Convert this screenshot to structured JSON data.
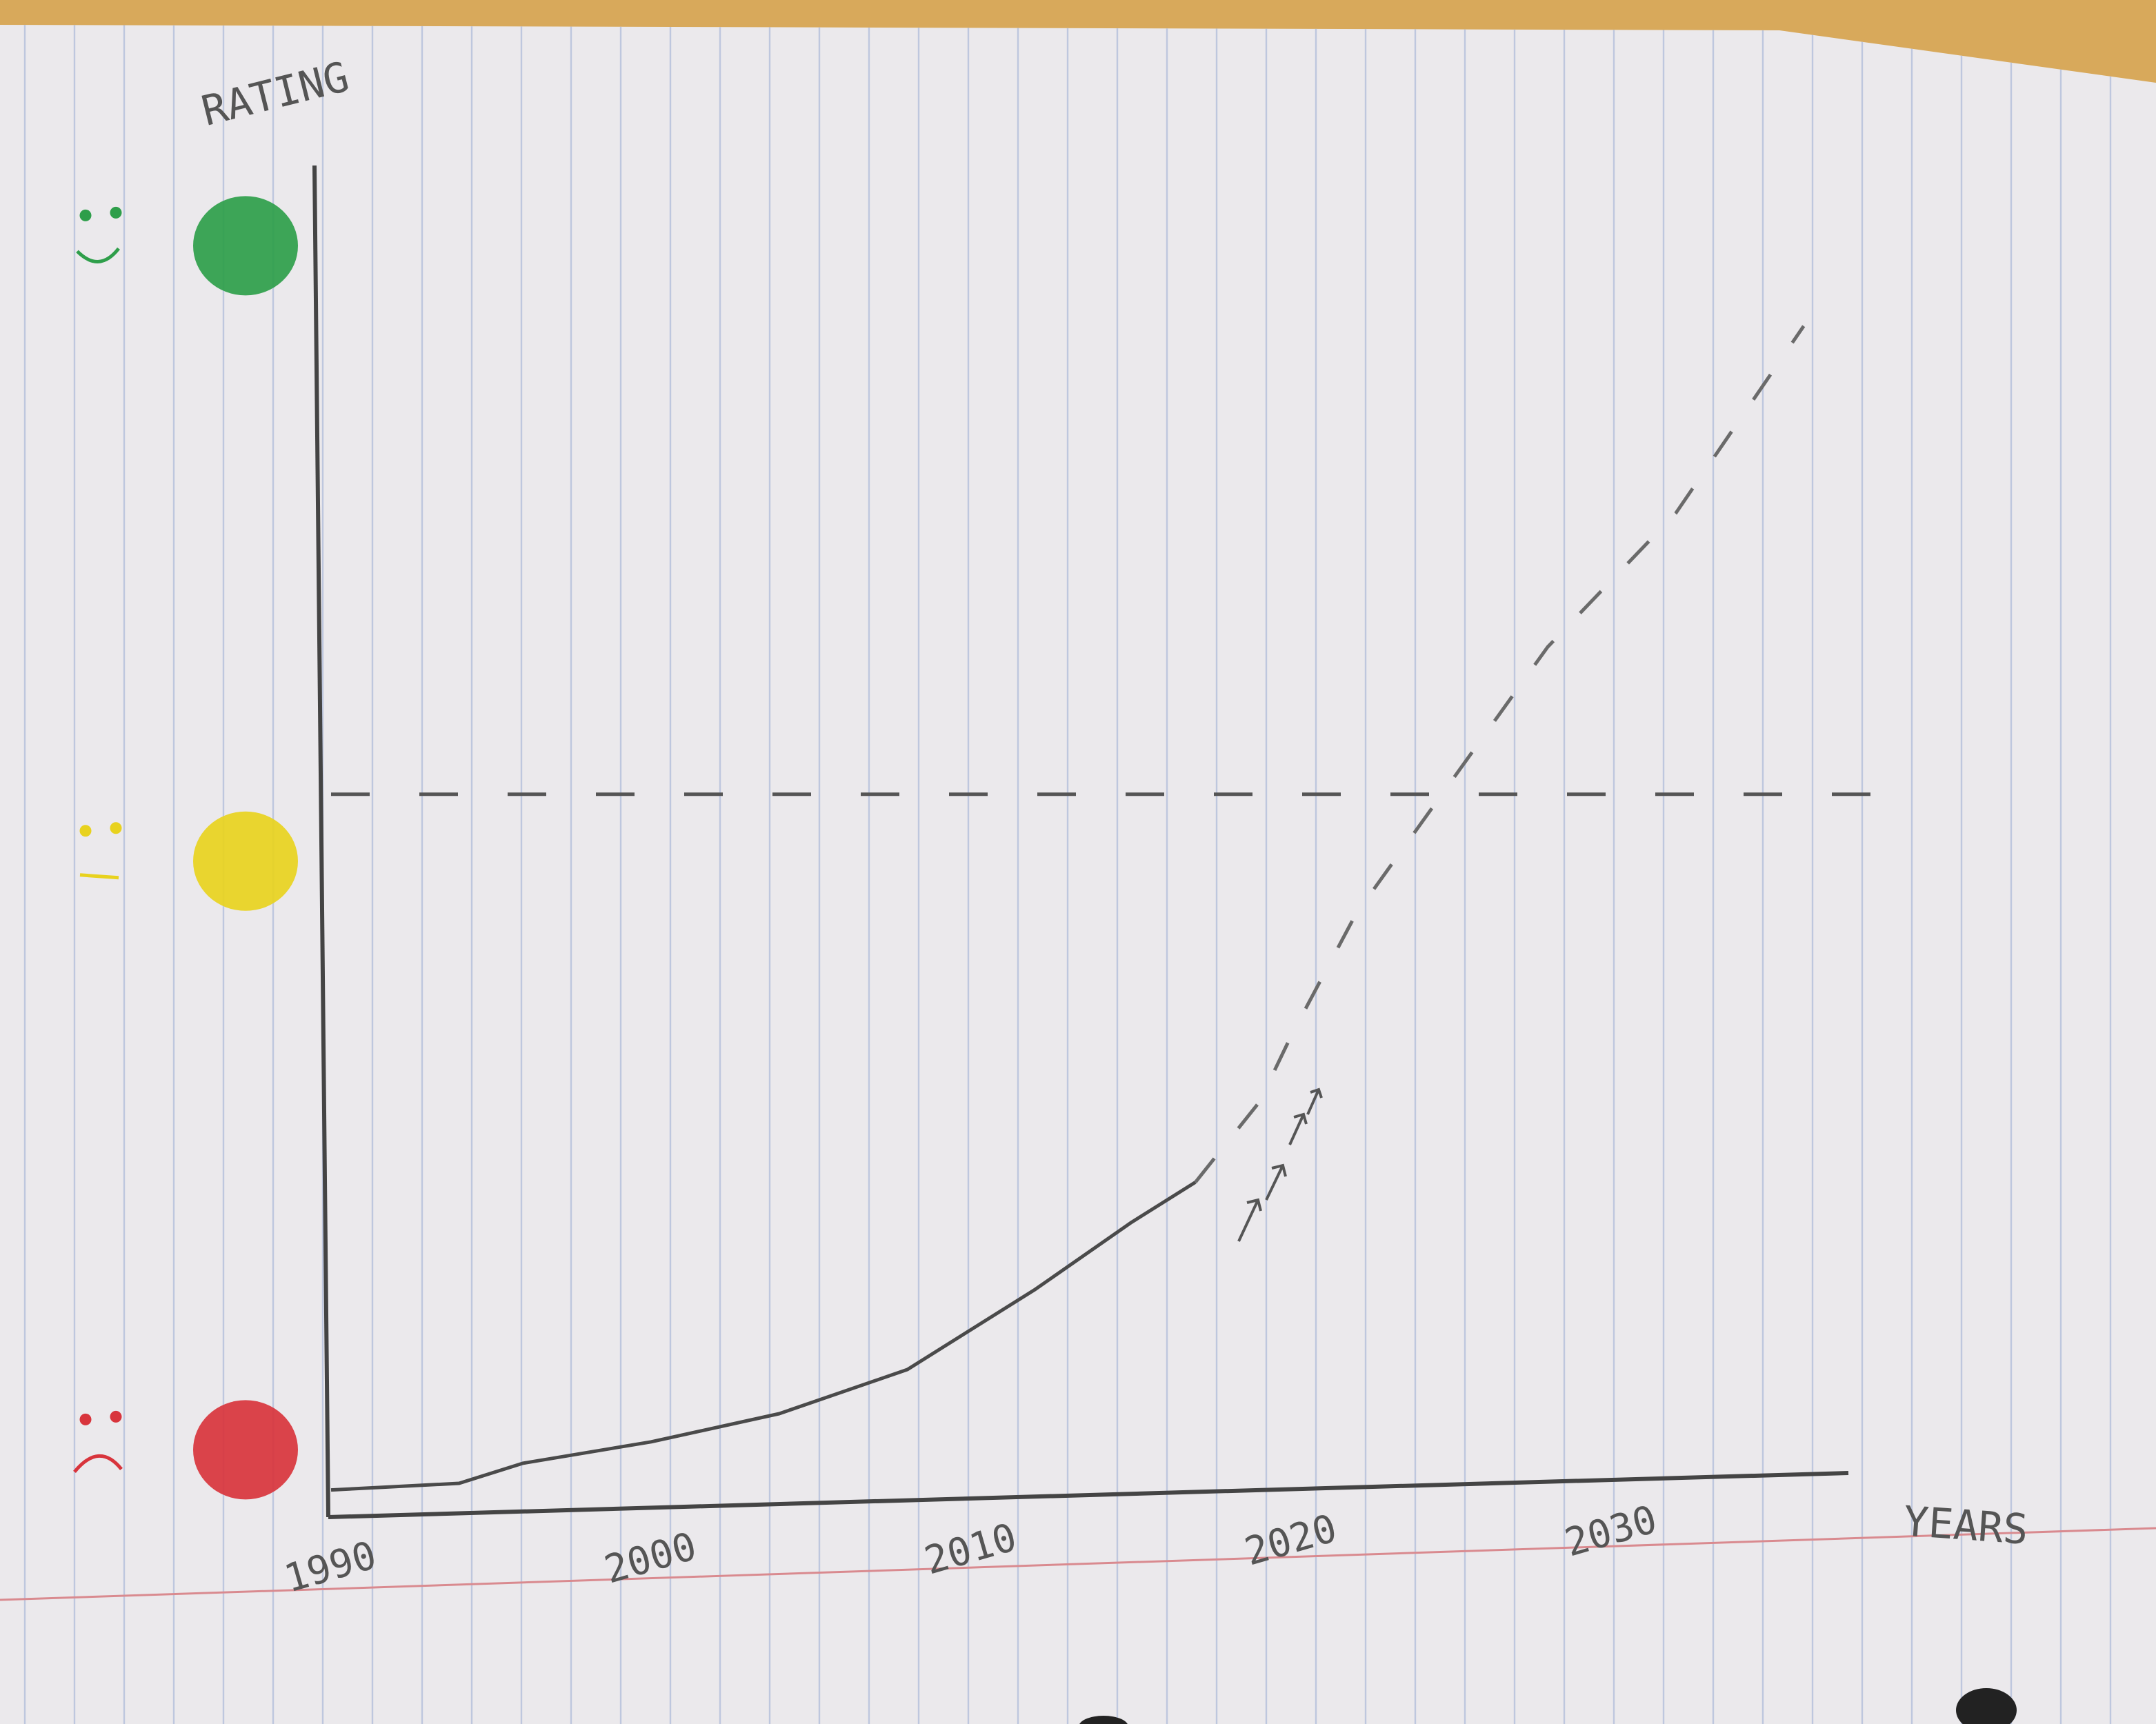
{
  "chart_data": {
    "type": "line",
    "y_axis_label": "RATING",
    "x_axis_label": "YEARS",
    "xlim": [
      1990,
      2038
    ],
    "xticks": [
      1990,
      2000,
      2010,
      2020,
      2030
    ],
    "ylim": [
      0,
      100
    ],
    "rating_levels": [
      {
        "value": 4,
        "color": "#d8343c",
        "face": "sad"
      },
      {
        "value": 48,
        "color": "#e8d21e",
        "face": "neutral"
      },
      {
        "value": 94,
        "color": "#2e9e4a",
        "face": "happy"
      }
    ],
    "reference_lines": [
      {
        "value": 53,
        "style": "dashed",
        "color": "#555555"
      }
    ],
    "series": [
      {
        "style": "solid",
        "color": "#4a4a4a",
        "x": [
          1990,
          1994,
          1996,
          2000,
          2004,
          2008,
          2012,
          2015,
          2017
        ],
        "values": [
          1,
          1.5,
          3,
          4.6,
          6.7,
          10,
          16,
          21,
          24
        ]
      },
      {
        "style": "dashed",
        "color": "#6a6a6a",
        "x": [
          2017,
          2019,
          2020,
          2022,
          2025,
          2028,
          2032,
          2036
        ],
        "values": [
          24,
          30,
          35,
          44,
          54,
          64,
          74,
          88
        ]
      }
    ]
  }
}
